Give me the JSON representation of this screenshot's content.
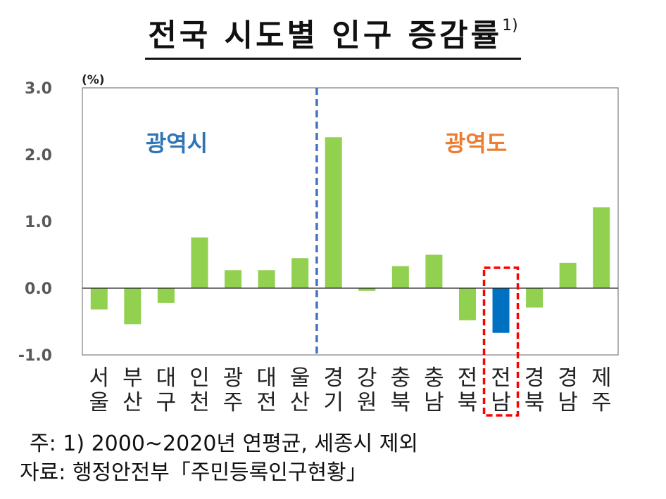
{
  "title": {
    "text": "전국 시도별 인구 증감률",
    "footnote_mark": "1)"
  },
  "chart_data": {
    "type": "bar",
    "title": "전국 시도별 인구 증감률",
    "ylabel": "(%)",
    "ylim": [
      -1.0,
      3.0
    ],
    "yticks": [
      "3.0",
      "2.0",
      "1.0",
      "0.0",
      "-1.0"
    ],
    "ytick_values": [
      3.0,
      2.0,
      1.0,
      0.0,
      -1.0
    ],
    "categories": [
      [
        "서",
        "울"
      ],
      [
        "부",
        "산"
      ],
      [
        "대",
        "구"
      ],
      [
        "인",
        "천"
      ],
      [
        "광",
        "주"
      ],
      [
        "대",
        "전"
      ],
      [
        "울",
        "산"
      ],
      [
        "경",
        "기"
      ],
      [
        "강",
        "원"
      ],
      [
        "충",
        "북"
      ],
      [
        "충",
        "남"
      ],
      [
        "전",
        "북"
      ],
      [
        "전",
        "남"
      ],
      [
        "경",
        "북"
      ],
      [
        "경",
        "남"
      ],
      [
        "제",
        "주"
      ]
    ],
    "values": [
      -0.32,
      -0.54,
      -0.22,
      0.76,
      0.27,
      0.27,
      0.45,
      2.26,
      -0.04,
      0.33,
      0.5,
      -0.48,
      -0.67,
      -0.29,
      0.38,
      1.21
    ],
    "highlight_index": 12,
    "group_labels": [
      "광역시",
      "광역도"
    ],
    "divider_after_index": 6,
    "grid": false,
    "colors": {
      "bar": "#92d050",
      "highlight": "#0070c0",
      "divider": "#4472c4",
      "box": "#ff0000",
      "group1": "#2e75b6",
      "group2": "#ed7d31",
      "axis_text": "#595959"
    }
  },
  "notes": {
    "line1": "주: 1) 2000~2020년 연평균, 세종시 제외",
    "line2": "자료: 행정안전부「주민등록인구현황」"
  }
}
